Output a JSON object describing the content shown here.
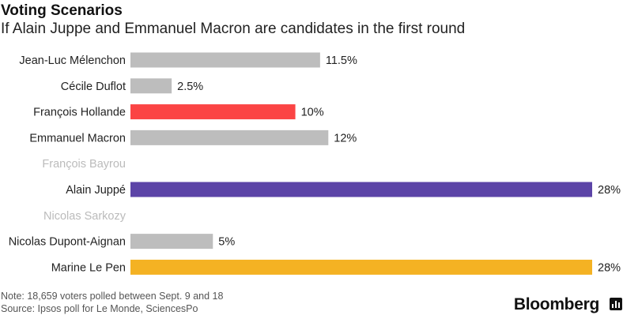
{
  "header": {
    "title": "Voting Scenarios",
    "subtitle": "If Alain Juppe and Emmanuel Macron are candidates in the first round"
  },
  "footer": {
    "note": "Note: 18,659 voters polled between Sept. 9 and 18",
    "source": "Source: Ipsos poll for Le Monde,  SciencesPo",
    "brand": "Bloomberg"
  },
  "chart_data": {
    "type": "bar",
    "orientation": "horizontal",
    "title": "Voting Scenarios",
    "subtitle": "If Alain Juppe and Emmanuel Macron are candidates in the first round",
    "categories": [
      "Jean-Luc Mélenchon",
      "Cécile Duflot",
      "François Hollande",
      "Emmanuel Macron",
      "François Bayrou",
      "Alain Juppé",
      "Nicolas Sarkozy",
      "Nicolas Dupont-Aignan",
      "Marine Le Pen"
    ],
    "values": [
      11.5,
      2.5,
      10,
      12,
      null,
      28,
      null,
      5,
      28
    ],
    "value_labels": [
      "11.5%",
      "2.5%",
      "10%",
      "12%",
      "",
      "28%",
      "",
      "5%",
      "28%"
    ],
    "colors": [
      "#bdbdbd",
      "#bdbdbd",
      "#fb4444",
      "#bdbdbd",
      "#bdbdbd",
      "#5c44a7",
      "#bdbdbd",
      "#bdbdbd",
      "#f4b223"
    ],
    "label_color": "#222222",
    "muted_label_color": "#bbbbbb",
    "xlim": [
      0,
      28
    ],
    "grid": false,
    "legend": "none"
  }
}
